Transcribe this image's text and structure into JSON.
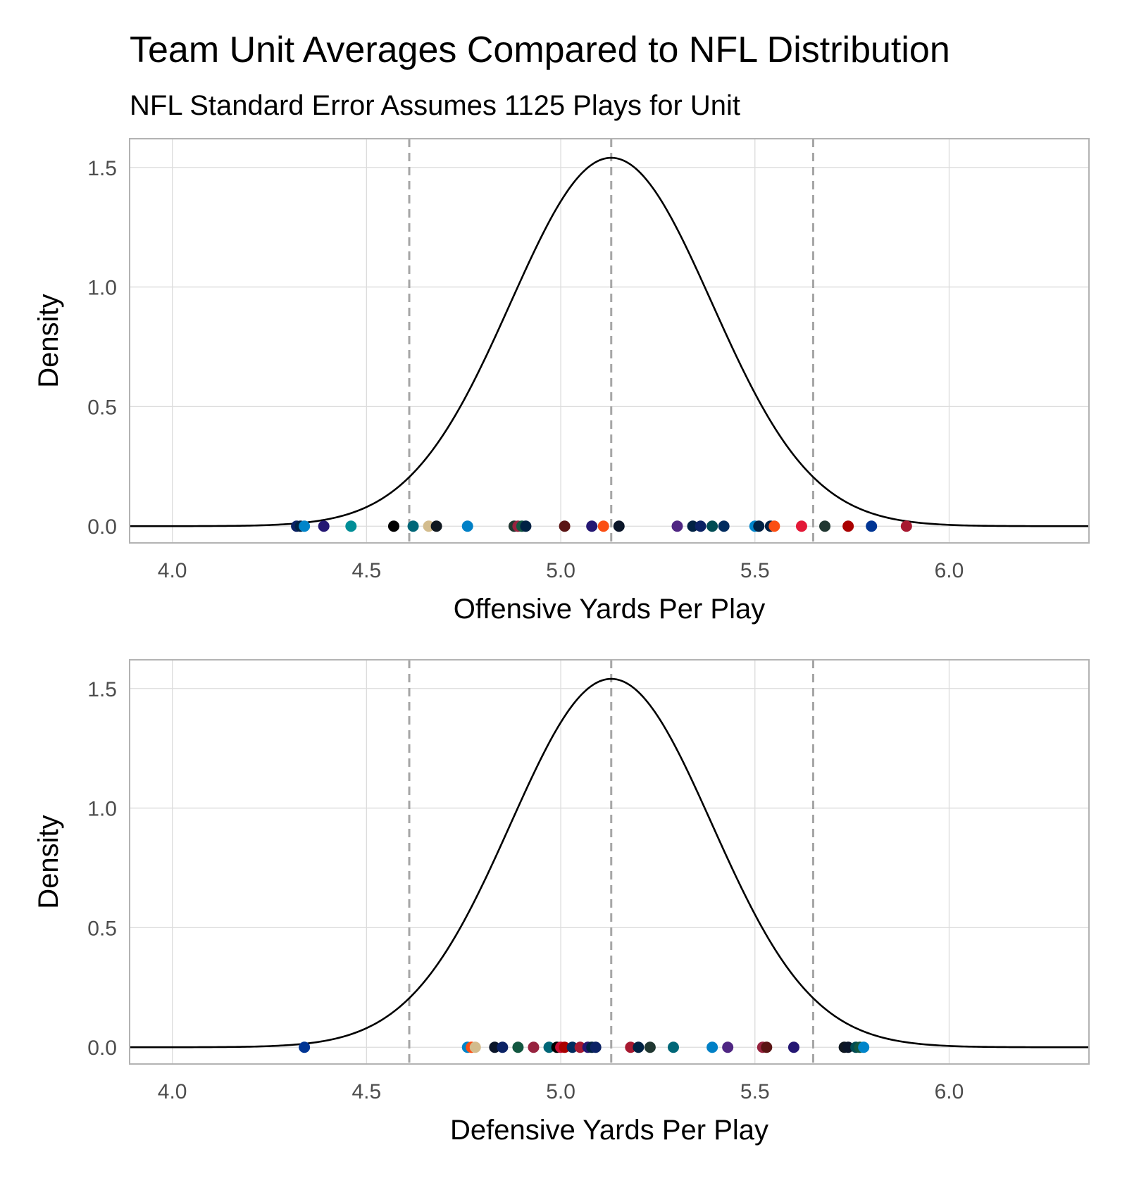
{
  "title": "Team Unit Averages Compared to NFL Distribution",
  "subtitle": "NFL Standard Error Assumes 1125 Plays for Unit",
  "colors": {
    "curve": "#000000",
    "dashed_lines": "#a6a6a6",
    "grid": "#dcdcdc",
    "panel_border": "#b3b3b3",
    "tick_label": "#4d4d4d"
  },
  "chart_data": [
    {
      "type": "scatter",
      "xlabel": "Offensive Yards Per Play",
      "ylabel": "Density",
      "xlim": [
        3.89,
        6.36
      ],
      "ylim": [
        -0.07,
        1.62
      ],
      "x_ticks": [
        4.0,
        4.5,
        5.0,
        5.5,
        6.0
      ],
      "x_tick_labels": [
        "4.0",
        "4.5",
        "5.0",
        "5.5",
        "6.0"
      ],
      "y_ticks": [
        0.0,
        0.5,
        1.0,
        1.5
      ],
      "y_tick_labels": [
        "0.0",
        "0.5",
        "1.0",
        "1.5"
      ],
      "grid": true,
      "density_curve": {
        "mean": 5.13,
        "sd": 0.259
      },
      "reference_lines": [
        4.61,
        5.13,
        5.65
      ],
      "points": [
        {
          "x": 4.32,
          "y": 0,
          "color": "#0b2265"
        },
        {
          "x": 4.33,
          "y": 0,
          "color": "#002244"
        },
        {
          "x": 4.34,
          "y": 0,
          "color": "#0085ca"
        },
        {
          "x": 4.39,
          "y": 0,
          "color": "#241773"
        },
        {
          "x": 4.46,
          "y": 0,
          "color": "#008e97"
        },
        {
          "x": 4.57,
          "y": 0,
          "color": "#000000"
        },
        {
          "x": 4.62,
          "y": 0,
          "color": "#006778"
        },
        {
          "x": 4.66,
          "y": 0,
          "color": "#d3bc8d"
        },
        {
          "x": 4.68,
          "y": 0,
          "color": "#101820"
        },
        {
          "x": 4.76,
          "y": 0,
          "color": "#0080c6"
        },
        {
          "x": 4.88,
          "y": 0,
          "color": "#203731"
        },
        {
          "x": 4.89,
          "y": 0,
          "color": "#97233f"
        },
        {
          "x": 4.9,
          "y": 0,
          "color": "#125740"
        },
        {
          "x": 4.91,
          "y": 0,
          "color": "#002244"
        },
        {
          "x": 5.01,
          "y": 0,
          "color": "#5a1414"
        },
        {
          "x": 5.08,
          "y": 0,
          "color": "#241773"
        },
        {
          "x": 5.11,
          "y": 0,
          "color": "#fb4f14"
        },
        {
          "x": 5.15,
          "y": 0,
          "color": "#0b162a"
        },
        {
          "x": 5.3,
          "y": 0,
          "color": "#4f2683"
        },
        {
          "x": 5.34,
          "y": 0,
          "color": "#002244"
        },
        {
          "x": 5.36,
          "y": 0,
          "color": "#0b2265"
        },
        {
          "x": 5.39,
          "y": 0,
          "color": "#004c54"
        },
        {
          "x": 5.42,
          "y": 0,
          "color": "#002c5f"
        },
        {
          "x": 5.5,
          "y": 0,
          "color": "#0085ca"
        },
        {
          "x": 5.51,
          "y": 0,
          "color": "#002244"
        },
        {
          "x": 5.54,
          "y": 0,
          "color": "#002244"
        },
        {
          "x": 5.55,
          "y": 0,
          "color": "#fb4f14"
        },
        {
          "x": 5.62,
          "y": 0,
          "color": "#e31837"
        },
        {
          "x": 5.68,
          "y": 0,
          "color": "#203731"
        },
        {
          "x": 5.74,
          "y": 0,
          "color": "#aa0000"
        },
        {
          "x": 5.8,
          "y": 0,
          "color": "#003594"
        },
        {
          "x": 5.89,
          "y": 0,
          "color": "#a71930"
        }
      ]
    },
    {
      "type": "scatter",
      "xlabel": "Defensive Yards Per Play",
      "ylabel": "Density",
      "xlim": [
        3.89,
        6.36
      ],
      "ylim": [
        -0.07,
        1.62
      ],
      "x_ticks": [
        4.0,
        4.5,
        5.0,
        5.5,
        6.0
      ],
      "x_tick_labels": [
        "4.0",
        "4.5",
        "5.0",
        "5.5",
        "6.0"
      ],
      "y_ticks": [
        0.0,
        0.5,
        1.0,
        1.5
      ],
      "y_tick_labels": [
        "0.0",
        "0.5",
        "1.0",
        "1.5"
      ],
      "grid": true,
      "density_curve": {
        "mean": 5.13,
        "sd": 0.259
      },
      "reference_lines": [
        4.61,
        5.13,
        5.65
      ],
      "points": [
        {
          "x": 4.34,
          "y": 0,
          "color": "#003594"
        },
        {
          "x": 4.76,
          "y": 0,
          "color": "#0085ca"
        },
        {
          "x": 4.77,
          "y": 0,
          "color": "#fb4f14"
        },
        {
          "x": 4.78,
          "y": 0,
          "color": "#d3bc8d"
        },
        {
          "x": 4.83,
          "y": 0,
          "color": "#0b162a"
        },
        {
          "x": 4.85,
          "y": 0,
          "color": "#0b2265"
        },
        {
          "x": 4.89,
          "y": 0,
          "color": "#125740"
        },
        {
          "x": 4.93,
          "y": 0,
          "color": "#97233f"
        },
        {
          "x": 4.97,
          "y": 0,
          "color": "#006778"
        },
        {
          "x": 4.99,
          "y": 0,
          "color": "#000000"
        },
        {
          "x": 5.0,
          "y": 0,
          "color": "#c60c30"
        },
        {
          "x": 5.01,
          "y": 0,
          "color": "#aa0000"
        },
        {
          "x": 5.03,
          "y": 0,
          "color": "#002c5f"
        },
        {
          "x": 5.05,
          "y": 0,
          "color": "#a71930"
        },
        {
          "x": 5.07,
          "y": 0,
          "color": "#241773"
        },
        {
          "x": 5.08,
          "y": 0,
          "color": "#002244"
        },
        {
          "x": 5.09,
          "y": 0,
          "color": "#0b2265"
        },
        {
          "x": 5.18,
          "y": 0,
          "color": "#a71930"
        },
        {
          "x": 5.2,
          "y": 0,
          "color": "#002244"
        },
        {
          "x": 5.23,
          "y": 0,
          "color": "#203731"
        },
        {
          "x": 5.29,
          "y": 0,
          "color": "#006778"
        },
        {
          "x": 5.39,
          "y": 0,
          "color": "#0080c6"
        },
        {
          "x": 5.43,
          "y": 0,
          "color": "#4f2683"
        },
        {
          "x": 5.52,
          "y": 0,
          "color": "#97233f"
        },
        {
          "x": 5.53,
          "y": 0,
          "color": "#5a1414"
        },
        {
          "x": 5.6,
          "y": 0,
          "color": "#241773"
        },
        {
          "x": 5.73,
          "y": 0,
          "color": "#101820"
        },
        {
          "x": 5.74,
          "y": 0,
          "color": "#0b162a"
        },
        {
          "x": 5.76,
          "y": 0,
          "color": "#004c54"
        },
        {
          "x": 5.77,
          "y": 0,
          "color": "#125740"
        },
        {
          "x": 5.78,
          "y": 0,
          "color": "#0085ca"
        }
      ]
    }
  ]
}
